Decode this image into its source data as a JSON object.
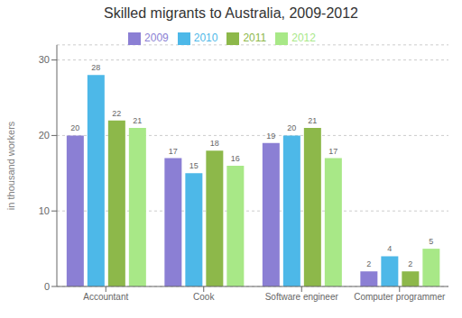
{
  "chart_data": {
    "type": "bar",
    "title": "Skilled migrants to Australia, 2009-2012",
    "ylabel": "in thousand workers",
    "categories": [
      "Accountant",
      "Cook",
      "Software engineer",
      "Computer programmer"
    ],
    "series": [
      {
        "name": "2009",
        "color": "#8B7FD4",
        "values": [
          20,
          17,
          19,
          2
        ]
      },
      {
        "name": "2010",
        "color": "#4DB8E8",
        "values": [
          28,
          15,
          20,
          4
        ]
      },
      {
        "name": "2011",
        "color": "#8DB84A",
        "values": [
          22,
          18,
          21,
          2
        ]
      },
      {
        "name": "2012",
        "color": "#A8E887",
        "values": [
          21,
          16,
          17,
          5
        ]
      }
    ],
    "ylim": [
      0,
      32
    ],
    "yticks": [
      0,
      10,
      20,
      30
    ],
    "grid": true,
    "legend": "top",
    "data_labels": true
  }
}
